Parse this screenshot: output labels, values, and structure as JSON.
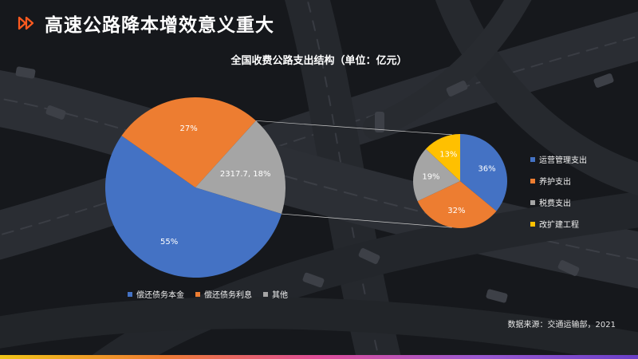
{
  "header": {
    "title": "高速公路降本增效意义重大"
  },
  "colors": {
    "blue": "#4472c4",
    "orange": "#ed7d31",
    "gray": "#a5a5a5",
    "yellow": "#ffc000",
    "accent": "#ff5a1f"
  },
  "chart_data": {
    "type": "pie",
    "title": "全国收费公路支出结构（单位：亿元）",
    "main_pie": {
      "categories": [
        "偿还债务本金",
        "偿还债务利息",
        "其他"
      ],
      "values": [
        55,
        27,
        18
      ],
      "labels": [
        "55%",
        "27%",
        "2317.7, 18%"
      ],
      "colors": [
        "#4472c4",
        "#ed7d31",
        "#a5a5a5"
      ]
    },
    "detail_pie": {
      "parent_category": "其他",
      "parent_value": 2317.7,
      "categories": [
        "运营管理支出",
        "养护支出",
        "税费支出",
        "改扩建工程"
      ],
      "values": [
        36,
        32,
        19,
        13
      ],
      "labels": [
        "36%",
        "32%",
        "19%",
        "13%"
      ],
      "colors": [
        "#4472c4",
        "#ed7d31",
        "#a5a5a5",
        "#ffc000"
      ]
    }
  },
  "legend_main": [
    {
      "label": "偿还债务本金",
      "color": "#4472c4"
    },
    {
      "label": "偿还债务利息",
      "color": "#ed7d31"
    },
    {
      "label": "其他",
      "color": "#a5a5a5"
    }
  ],
  "legend_detail": [
    {
      "label": "运营管理支出",
      "color": "#4472c4"
    },
    {
      "label": "养护支出",
      "color": "#ed7d31"
    },
    {
      "label": "税费支出",
      "color": "#a5a5a5"
    },
    {
      "label": "改扩建工程",
      "color": "#ffc000"
    }
  ],
  "footer": {
    "source": "数据来源：交通运输部，2021"
  }
}
